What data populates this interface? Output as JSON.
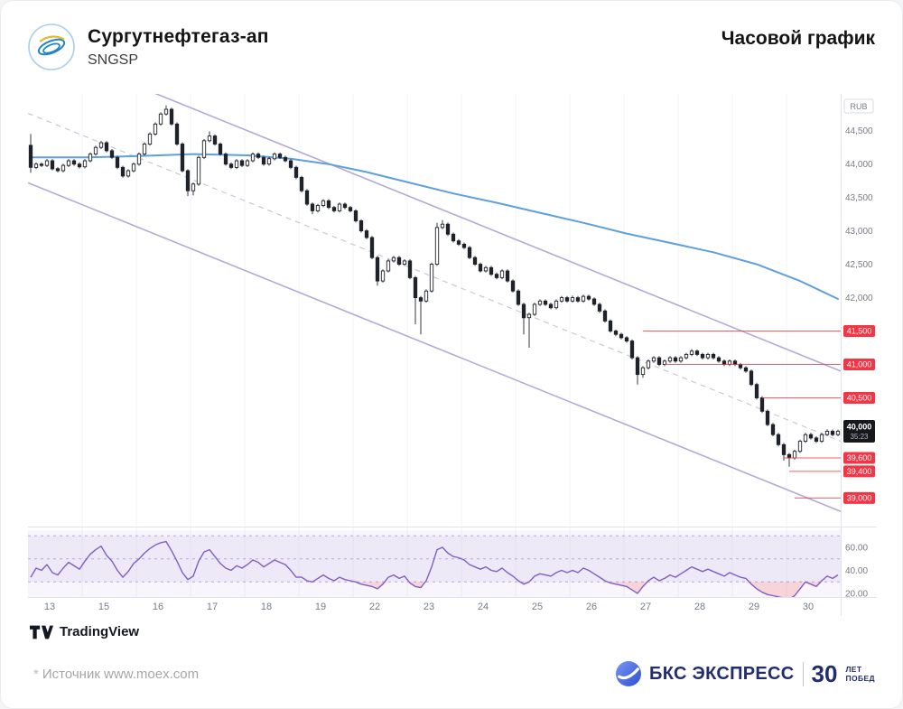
{
  "header": {
    "title": "Сургутнефтегаз-ап",
    "ticker": "SNGSP",
    "chart_type": "Часовой график"
  },
  "footer": {
    "tradingview_label": "TradingView",
    "source_asterisk": "*",
    "source_note": "Источник www.moex.com",
    "bks_brand": "БКС ЭКСПРЕСС",
    "bks_anniversary_number": "30",
    "bks_anniversary_lines": [
      "ЛЕТ",
      "ПОБЕД"
    ]
  },
  "chart_data": {
    "type": "candlestick",
    "title": "Сургутнефтегаз-ап, часовой график",
    "currency_label": "RUB",
    "legend_position": "none",
    "grid": "vertical-only",
    "price_axis_range": [
      38600,
      45050
    ],
    "price_axis_ticks": [
      44500,
      44000,
      43500,
      43000,
      42500,
      42000
    ],
    "date_labels": [
      "13",
      "15",
      "16",
      "17",
      "18",
      "19",
      "22",
      "23",
      "24",
      "25",
      "26",
      "27",
      "28",
      "29",
      "30"
    ],
    "candles_per_day": 10,
    "colors": {
      "candle": "#20222a",
      "candle_up_fill": "#ffffff",
      "ma": "#5d9fe0",
      "channel": "#b4aad8",
      "channel_mid": "#c9c9d6",
      "level": "#f23645",
      "rsi": "#7d5fc7",
      "last_price_bg": "#17181c",
      "axis_text": "#787b86"
    },
    "candles": [
      [
        44280,
        44450,
        43870,
        43950
      ],
      [
        43950,
        44025,
        43925,
        44000
      ],
      [
        44000,
        44025,
        43955,
        43980
      ],
      [
        43980,
        44075,
        43955,
        44050
      ],
      [
        44050,
        44075,
        43905,
        43930
      ],
      [
        43930,
        43955,
        43875,
        43900
      ],
      [
        43900,
        44005,
        43875,
        43980
      ],
      [
        43980,
        44075,
        43955,
        44050
      ],
      [
        44050,
        44075,
        43975,
        44000
      ],
      [
        44000,
        44025,
        43935,
        43960
      ],
      [
        43960,
        44075,
        43935,
        44050
      ],
      [
        44050,
        44175,
        44025,
        44150
      ],
      [
        44150,
        44275,
        44125,
        44250
      ],
      [
        44250,
        44345,
        44225,
        44320
      ],
      [
        44320,
        44345,
        44175,
        44200
      ],
      [
        44200,
        44225,
        44075,
        44100
      ],
      [
        44100,
        44125,
        43925,
        43950
      ],
      [
        43950,
        43975,
        43795,
        43820
      ],
      [
        43820,
        43925,
        43795,
        43900
      ],
      [
        43900,
        44025,
        43875,
        44000
      ],
      [
        44000,
        44175,
        43975,
        44150
      ],
      [
        44150,
        44325,
        44125,
        44300
      ],
      [
        44300,
        44475,
        44275,
        44450
      ],
      [
        44450,
        44625,
        44425,
        44600
      ],
      [
        44600,
        44775,
        44575,
        44750
      ],
      [
        44750,
        44880,
        44725,
        44820
      ],
      [
        44820,
        44845,
        44575,
        44600
      ],
      [
        44600,
        44625,
        44275,
        44300
      ],
      [
        44300,
        44325,
        43875,
        43900
      ],
      [
        43900,
        43925,
        43520,
        43600
      ],
      [
        43600,
        43725,
        43530,
        43700
      ],
      [
        43700,
        44125,
        43675,
        44100
      ],
      [
        44100,
        44375,
        44075,
        44350
      ],
      [
        44350,
        44490,
        44325,
        44420
      ],
      [
        44420,
        44445,
        44275,
        44300
      ],
      [
        44300,
        44325,
        44125,
        44150
      ],
      [
        44150,
        44175,
        43975,
        44000
      ],
      [
        44000,
        44025,
        43925,
        43950
      ],
      [
        43950,
        44075,
        43925,
        44050
      ],
      [
        44050,
        44075,
        43955,
        43980
      ],
      [
        43980,
        44075,
        43955,
        44050
      ],
      [
        44050,
        44175,
        44025,
        44150
      ],
      [
        44150,
        44175,
        44075,
        44100
      ],
      [
        44100,
        44125,
        43975,
        44000
      ],
      [
        44000,
        44105,
        43975,
        44080
      ],
      [
        44080,
        44175,
        44055,
        44150
      ],
      [
        44150,
        44175,
        44075,
        44100
      ],
      [
        44100,
        44125,
        44025,
        44050
      ],
      [
        44050,
        44075,
        43925,
        43950
      ],
      [
        43950,
        43975,
        43775,
        43800
      ],
      [
        43800,
        43825,
        43575,
        43600
      ],
      [
        43600,
        43625,
        43375,
        43400
      ],
      [
        43400,
        43425,
        43250,
        43300
      ],
      [
        43300,
        43405,
        43275,
        43380
      ],
      [
        43380,
        43475,
        43355,
        43450
      ],
      [
        43450,
        43475,
        43325,
        43350
      ],
      [
        43350,
        43375,
        43275,
        43300
      ],
      [
        43300,
        43425,
        43275,
        43400
      ],
      [
        43400,
        43425,
        43325,
        43350
      ],
      [
        43350,
        43375,
        43275,
        43300
      ],
      [
        43300,
        43325,
        43125,
        43150
      ],
      [
        43150,
        43175,
        42975,
        43000
      ],
      [
        43000,
        43025,
        42875,
        42900
      ],
      [
        42900,
        42925,
        42575,
        42600
      ],
      [
        42600,
        42625,
        42180,
        42250
      ],
      [
        42250,
        42425,
        42225,
        42400
      ],
      [
        42400,
        42575,
        42375,
        42550
      ],
      [
        42550,
        42625,
        42525,
        42600
      ],
      [
        42600,
        42625,
        42475,
        42500
      ],
      [
        42500,
        42575,
        42475,
        42550
      ],
      [
        42550,
        42575,
        42275,
        42300
      ],
      [
        42300,
        42325,
        41600,
        42000
      ],
      [
        42000,
        42025,
        41450,
        41950
      ],
      [
        41950,
        42125,
        41925,
        42100
      ],
      [
        42100,
        42525,
        42075,
        42500
      ],
      [
        42500,
        43120,
        42475,
        43050
      ],
      [
        43050,
        43160,
        43025,
        43100
      ],
      [
        43100,
        43125,
        42925,
        42950
      ],
      [
        42950,
        42975,
        42825,
        42850
      ],
      [
        42850,
        42875,
        42775,
        42800
      ],
      [
        42800,
        42825,
        42725,
        42750
      ],
      [
        42750,
        42775,
        42575,
        42600
      ],
      [
        42600,
        42625,
        42475,
        42500
      ],
      [
        42500,
        42525,
        42375,
        42400
      ],
      [
        42400,
        42475,
        42375,
        42450
      ],
      [
        42450,
        42475,
        42325,
        42350
      ],
      [
        42350,
        42375,
        42275,
        42300
      ],
      [
        42300,
        42425,
        42275,
        42400
      ],
      [
        42400,
        42425,
        42225,
        42250
      ],
      [
        42250,
        42275,
        42075,
        42100
      ],
      [
        42100,
        42125,
        41875,
        41900
      ],
      [
        41900,
        41925,
        41450,
        41700
      ],
      [
        41700,
        41775,
        41250,
        41750
      ],
      [
        41750,
        41925,
        41725,
        41900
      ],
      [
        41900,
        41975,
        41875,
        41950
      ],
      [
        41950,
        41975,
        41875,
        41900
      ],
      [
        41900,
        41925,
        41825,
        41850
      ],
      [
        41850,
        41975,
        41825,
        41950
      ],
      [
        41950,
        42025,
        41925,
        42000
      ],
      [
        42000,
        42025,
        41925,
        41950
      ],
      [
        41950,
        42030,
        41925,
        42000
      ],
      [
        42000,
        42025,
        41925,
        41950
      ],
      [
        41950,
        42045,
        41925,
        42020
      ],
      [
        42020,
        42045,
        41955,
        41980
      ],
      [
        41980,
        42005,
        41875,
        41900
      ],
      [
        41900,
        41925,
        41775,
        41800
      ],
      [
        41800,
        41825,
        41625,
        41650
      ],
      [
        41650,
        41675,
        41475,
        41500
      ],
      [
        41500,
        41525,
        41425,
        41450
      ],
      [
        41450,
        41475,
        41375,
        41400
      ],
      [
        41400,
        41425,
        41325,
        41350
      ],
      [
        41350,
        41375,
        41075,
        41100
      ],
      [
        41100,
        41125,
        40700,
        40850
      ],
      [
        40850,
        40975,
        40800,
        40950
      ],
      [
        40950,
        41075,
        40925,
        41050
      ],
      [
        41050,
        41125,
        41025,
        41100
      ],
      [
        41100,
        41125,
        40975,
        41000
      ],
      [
        41000,
        41075,
        40975,
        41050
      ],
      [
        41050,
        41125,
        41025,
        41100
      ],
      [
        41100,
        41125,
        41025,
        41050
      ],
      [
        41050,
        41125,
        41025,
        41100
      ],
      [
        41100,
        41175,
        41075,
        41150
      ],
      [
        41150,
        41230,
        41125,
        41200
      ],
      [
        41200,
        41225,
        41125,
        41150
      ],
      [
        41150,
        41175,
        41075,
        41100
      ],
      [
        41100,
        41175,
        41075,
        41150
      ],
      [
        41150,
        41175,
        41075,
        41100
      ],
      [
        41100,
        41125,
        41025,
        41050
      ],
      [
        41050,
        41075,
        40975,
        41000
      ],
      [
        41000,
        41075,
        40975,
        41050
      ],
      [
        41050,
        41075,
        40975,
        41000
      ],
      [
        41000,
        41025,
        40925,
        40950
      ],
      [
        40950,
        40975,
        40875,
        40900
      ],
      [
        40900,
        40925,
        40675,
        40700
      ],
      [
        40700,
        40725,
        40475,
        40500
      ],
      [
        40500,
        40525,
        40275,
        40300
      ],
      [
        40300,
        40325,
        40075,
        40100
      ],
      [
        40100,
        40125,
        39925,
        39950
      ],
      [
        39950,
        39975,
        39775,
        39800
      ],
      [
        39800,
        39825,
        39560,
        39650
      ],
      [
        39650,
        39675,
        39470,
        39600
      ],
      [
        39600,
        39725,
        39575,
        39700
      ],
      [
        39700,
        39875,
        39675,
        39850
      ],
      [
        39850,
        39975,
        39825,
        39950
      ],
      [
        39950,
        39975,
        39875,
        39900
      ],
      [
        39900,
        39925,
        39825,
        39850
      ],
      [
        39850,
        39975,
        39825,
        39950
      ],
      [
        39950,
        40030,
        39925,
        40000
      ],
      [
        40000,
        40025,
        39925,
        39950
      ],
      [
        39950,
        40025,
        39925,
        40000
      ]
    ],
    "ma": {
      "name": "moving-average",
      "points": [
        [
          0,
          44100
        ],
        [
          10,
          44100
        ],
        [
          20,
          44120
        ],
        [
          30,
          44150
        ],
        [
          40,
          44130
        ],
        [
          48,
          44080
        ],
        [
          55,
          44000
        ],
        [
          62,
          43880
        ],
        [
          70,
          43720
        ],
        [
          78,
          43560
        ],
        [
          86,
          43420
        ],
        [
          94,
          43270
        ],
        [
          102,
          43120
        ],
        [
          110,
          42960
        ],
        [
          118,
          42820
        ],
        [
          126,
          42680
        ],
        [
          134,
          42500
        ],
        [
          142,
          42250
        ],
        [
          149,
          41980
        ]
      ]
    },
    "channel": {
      "upper": [
        45830,
        40900
      ],
      "middle": [
        44760,
        39850
      ],
      "lower": [
        43720,
        38800
      ]
    },
    "levels": [
      {
        "price": 41500,
        "start_index": 113
      },
      {
        "price": 41000,
        "start_index": 117
      },
      {
        "price": 40500,
        "start_index": 135
      },
      {
        "price": 39600,
        "start_index": 139
      },
      {
        "price": 39400,
        "start_index": 140
      },
      {
        "price": 39000,
        "start_index": 141
      }
    ],
    "last_price": {
      "value": 40000,
      "countdown": "35:23"
    },
    "rsi": {
      "band": [
        30,
        70
      ],
      "middle": 50,
      "axis_ticks": [
        "60.00",
        "40.00",
        "20.00"
      ],
      "values": [
        34,
        42,
        40,
        45,
        38,
        36,
        42,
        47,
        44,
        41,
        48,
        54,
        58,
        61,
        53,
        48,
        40,
        34,
        39,
        46,
        50,
        55,
        59,
        62,
        64,
        65,
        57,
        48,
        38,
        32,
        35,
        48,
        56,
        58,
        52,
        46,
        42,
        40,
        44,
        42,
        45,
        49,
        47,
        43,
        46,
        49,
        47,
        45,
        40,
        34,
        34,
        31,
        30,
        33,
        36,
        33,
        31,
        34,
        32,
        31,
        30,
        28,
        27,
        26,
        24,
        28,
        34,
        36,
        33,
        35,
        29,
        26,
        25,
        31,
        43,
        58,
        60,
        55,
        52,
        51,
        49,
        45,
        43,
        41,
        43,
        40,
        39,
        42,
        38,
        35,
        31,
        28,
        30,
        35,
        37,
        36,
        35,
        38,
        40,
        38,
        40,
        38,
        42,
        40,
        37,
        34,
        31,
        29,
        28,
        27,
        26,
        23,
        20,
        26,
        31,
        34,
        31,
        33,
        36,
        34,
        37,
        40,
        43,
        41,
        39,
        41,
        39,
        37,
        35,
        38,
        36,
        34,
        33,
        28,
        24,
        21,
        19,
        18,
        17,
        16,
        15,
        18,
        24,
        30,
        28,
        26,
        31,
        35,
        33,
        36
      ]
    }
  }
}
